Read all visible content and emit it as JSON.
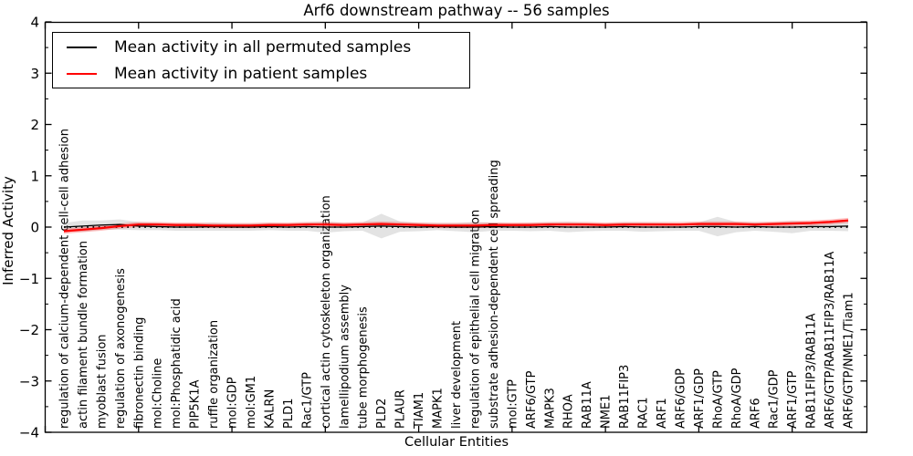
{
  "title": "Arf6 downstream pathway -- 56 samples",
  "axes": {
    "xlabel": "Cellular Entities",
    "ylabel": "Inferred Activity",
    "ytick_labels": [
      "4",
      "3",
      "2",
      "1",
      "0",
      "−1",
      "−2",
      "−3",
      "−4"
    ],
    "ytick_values": [
      4,
      3,
      2,
      1,
      0,
      -1,
      -2,
      -3,
      -4
    ]
  },
  "legend": {
    "entries": [
      {
        "label": "Mean activity in all permuted samples",
        "color": "#000000"
      },
      {
        "label": "Mean activity in patient samples",
        "color": "#ff0000"
      }
    ]
  },
  "chart_data": {
    "type": "line",
    "title": "Arf6 downstream pathway -- 56 samples",
    "xlabel": "Cellular Entities",
    "ylabel": "Inferred Activity",
    "ylim": [
      -4,
      4
    ],
    "xlim": [
      0,
      44
    ],
    "x_major_tick_positions": [
      0,
      5,
      10,
      15,
      20,
      25,
      30,
      35,
      40
    ],
    "grid": false,
    "legend_position": "upper left",
    "zero_reference_line": true,
    "categories": [
      "regulation of calcium-dependent cell-cell adhesion",
      "actin filament bundle formation",
      "myoblast fusion",
      "regulation of axonogenesis",
      "fibronectin binding",
      "mol:Choline",
      "mol:Phosphatidic acid",
      "PIP5K1A",
      "ruffle organization",
      "mol:GDP",
      "mol:GM1",
      "KALRN",
      "PLD1",
      "Rac1/GTP",
      "cortical actin cytoskeleton organization",
      "lamellipodium assembly",
      "tube morphogenesis",
      "PLD2",
      "PLAUR",
      "TIAM1",
      "MAPK1",
      "liver development",
      "regulation of epithelial cell migration",
      "substrate adhesion-dependent cell spreading",
      "mol:GTP",
      "ARF6/GTP",
      "MAPK3",
      "RHOA",
      "RAB11A",
      "NME1",
      "RAB11FIP3",
      "RAC1",
      "ARF1",
      "ARF6/GDP",
      "ARF1/GDP",
      "RhoA/GTP",
      "RhoA/GDP",
      "ARF6",
      "Rac1/GDP",
      "ARF1/GTP",
      "RAB11FIP3/RAB11A",
      "ARF6/GTP/RAB11FIP3/RAB11A",
      "ARF6/GTP/NME1/Tiam1"
    ],
    "series": [
      {
        "name": "Mean activity in all permuted samples",
        "color": "#000000",
        "style": "solid",
        "values": [
          0.0,
          0.02,
          0.04,
          0.05,
          0.02,
          0.01,
          0.0,
          0.0,
          0.01,
          0.0,
          0.0,
          0.01,
          0.0,
          0.01,
          0.0,
          0.0,
          0.01,
          0.02,
          0.01,
          0.0,
          0.01,
          0.0,
          0.0,
          0.01,
          0.0,
          0.0,
          0.01,
          0.0,
          0.0,
          0.0,
          0.01,
          0.0,
          0.0,
          0.0,
          0.01,
          0.01,
          0.0,
          0.01,
          0.0,
          0.0,
          0.01,
          0.01,
          0.02
        ]
      },
      {
        "name": "Mean activity in patient samples",
        "color": "#ff0000",
        "style": "solid",
        "values": [
          -0.08,
          -0.05,
          -0.02,
          0.02,
          0.05,
          0.05,
          0.04,
          0.04,
          0.03,
          0.03,
          0.03,
          0.04,
          0.04,
          0.05,
          0.05,
          0.04,
          0.05,
          0.06,
          0.05,
          0.04,
          0.03,
          0.03,
          0.03,
          0.04,
          0.04,
          0.04,
          0.05,
          0.05,
          0.05,
          0.04,
          0.05,
          0.05,
          0.05,
          0.05,
          0.06,
          0.06,
          0.06,
          0.05,
          0.06,
          0.07,
          0.08,
          0.1,
          0.13
        ]
      }
    ],
    "permuted_band_halfwidth": [
      0.08,
      0.11,
      0.09,
      0.1,
      0.08,
      0.07,
      0.07,
      0.07,
      0.08,
      0.07,
      0.07,
      0.07,
      0.07,
      0.08,
      0.11,
      0.08,
      0.08,
      0.24,
      0.1,
      0.08,
      0.07,
      0.08,
      0.1,
      0.08,
      0.07,
      0.08,
      0.08,
      0.1,
      0.08,
      0.07,
      0.08,
      0.09,
      0.08,
      0.07,
      0.08,
      0.19,
      0.1,
      0.08,
      0.09,
      0.12,
      0.08,
      0.08,
      0.1
    ],
    "patient_halo_halfwidth": 0.05,
    "band_color": "#9a9a9a",
    "halo_color": "#ff0000"
  }
}
